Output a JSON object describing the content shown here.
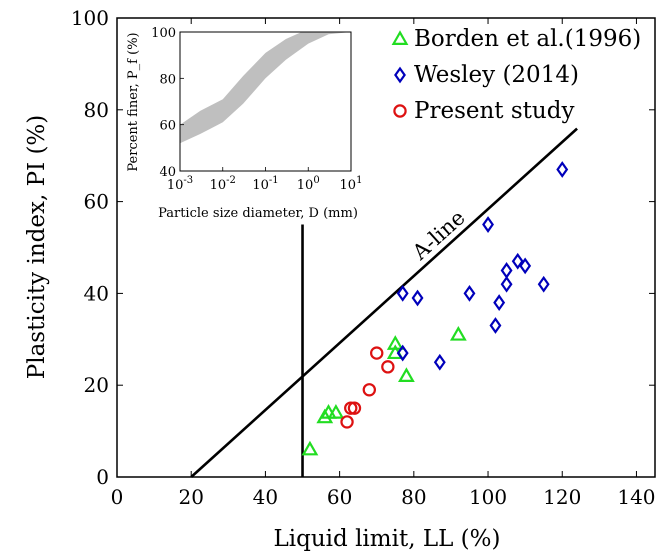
{
  "chart_data": [
    {
      "type": "scatter",
      "xlabel": "Liquid limit, LL (%)",
      "ylabel": "Plasticity index, PI (%)",
      "xlim": [
        0,
        145
      ],
      "ylim": [
        0,
        100
      ],
      "x_ticks": [
        0,
        20,
        40,
        60,
        80,
        100,
        120,
        140
      ],
      "y_ticks": [
        0,
        20,
        40,
        60,
        80,
        100
      ],
      "grid": false,
      "legend_position": "top-right",
      "series": [
        {
          "name": "Borden et al.(1996)",
          "marker": "triangle",
          "color": "#22dd22",
          "points": [
            [
              52,
              6
            ],
            [
              56,
              13
            ],
            [
              57,
              14
            ],
            [
              59,
              14
            ],
            [
              75,
              29
            ],
            [
              75,
              27
            ],
            [
              78,
              22
            ],
            [
              92,
              31
            ]
          ]
        },
        {
          "name": "Wesley (2014)",
          "marker": "diamond",
          "color": "#0000bb",
          "points": [
            [
              77,
              27
            ],
            [
              77,
              40
            ],
            [
              81,
              39
            ],
            [
              87,
              25
            ],
            [
              95,
              40
            ],
            [
              100,
              55
            ],
            [
              102,
              33
            ],
            [
              103,
              38
            ],
            [
              105,
              42
            ],
            [
              105,
              45
            ],
            [
              108,
              47
            ],
            [
              110,
              46
            ],
            [
              115,
              42
            ],
            [
              120,
              67
            ]
          ]
        },
        {
          "name": "Present study",
          "marker": "circle",
          "color": "#dd1111",
          "points": [
            [
              62,
              12
            ],
            [
              63,
              15
            ],
            [
              64,
              15
            ],
            [
              68,
              19
            ],
            [
              70,
              27
            ],
            [
              73,
              24
            ]
          ]
        }
      ],
      "reference_lines": [
        {
          "name": "A-line",
          "label": "A-line",
          "equation": "PI = 0.73 (LL - 20)",
          "from": [
            20,
            0
          ],
          "to": [
            124,
            75.9
          ]
        },
        {
          "name": "U-vertical",
          "label": "",
          "equation": "LL = 50",
          "from": [
            50,
            0
          ],
          "to": [
            50,
            55
          ]
        }
      ]
    },
    {
      "type": "area",
      "xlabel": "Particle size diameter, D (mm)",
      "ylabel": "Percent finer, P_f (%)",
      "xscale": "log",
      "xlim": [
        0.001,
        10
      ],
      "ylim": [
        40,
        100
      ],
      "x_ticks": [
        "10^-3",
        "10^-2",
        "10^-1",
        "10^0",
        "10^1"
      ],
      "y_ticks": [
        40,
        60,
        80,
        100
      ],
      "band_color": "#bfbfbf",
      "band_upper": [
        [
          0.001,
          60
        ],
        [
          0.003,
          66
        ],
        [
          0.01,
          71
        ],
        [
          0.03,
          81
        ],
        [
          0.1,
          91
        ],
        [
          0.3,
          97
        ],
        [
          0.7,
          100
        ],
        [
          10,
          100
        ]
      ],
      "band_lower": [
        [
          0.001,
          52
        ],
        [
          0.003,
          56
        ],
        [
          0.01,
          61
        ],
        [
          0.03,
          69
        ],
        [
          0.1,
          80
        ],
        [
          0.3,
          88
        ],
        [
          1,
          95
        ],
        [
          3,
          99
        ],
        [
          10,
          100
        ]
      ]
    }
  ]
}
